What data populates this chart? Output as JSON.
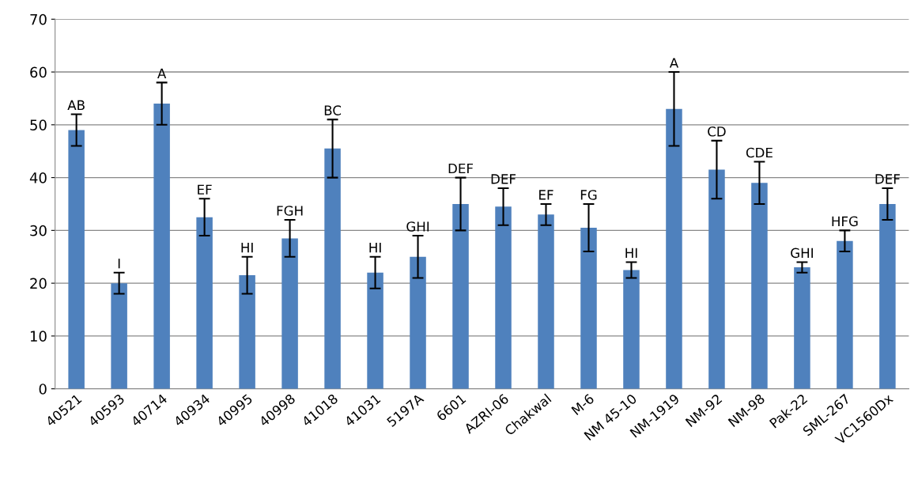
{
  "chart_data": {
    "type": "bar",
    "categories": [
      "40521",
      "40593",
      "40714",
      "40934",
      "40995",
      "40998",
      "41018",
      "41031",
      "5197A",
      "6601",
      "AZRI-06",
      "Chakwal",
      "M-6",
      "NM 45-10",
      "NM-1919",
      "NM-92",
      "NM-98",
      "Pak-22",
      "SML-267",
      "VC1560Dx"
    ],
    "values": [
      49,
      20,
      54,
      32.5,
      21.5,
      28.5,
      45.5,
      22,
      25,
      35,
      34.5,
      33,
      30.5,
      22.5,
      53,
      41.5,
      39,
      23,
      28,
      35
    ],
    "errors": [
      3,
      2,
      4,
      3.5,
      3.5,
      3.5,
      5.5,
      3,
      4,
      5,
      3.5,
      2,
      4.5,
      1.5,
      7,
      5.5,
      4,
      1,
      2,
      3
    ],
    "value_labels": [
      "AB",
      "I",
      "A",
      "EF",
      "HI",
      "FGH",
      "BC",
      "HI",
      "GHI",
      "DEF",
      "DEF",
      "EF",
      "FG",
      "HI",
      "A",
      "CD",
      "CDE",
      "GHI",
      "HFG",
      "DEF"
    ],
    "color": "#4f81bd",
    "ylim": [
      0,
      70
    ],
    "yticks": [
      0,
      10,
      20,
      30,
      40,
      50,
      60,
      70
    ],
    "grid": "y"
  }
}
